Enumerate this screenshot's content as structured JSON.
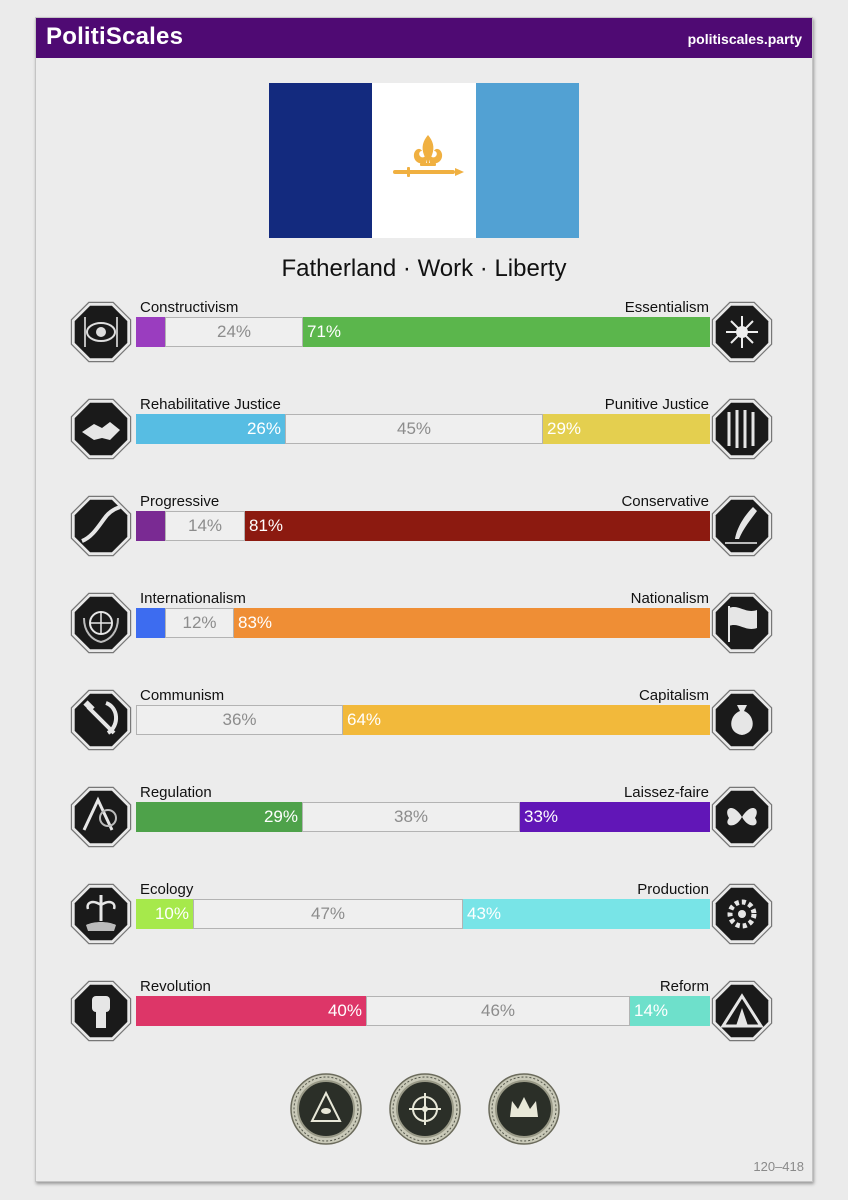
{
  "header": {
    "brand": "PolitiScales",
    "site": "politiscales.party"
  },
  "flag": {
    "colors": [
      "#132a7e",
      "#ffffff",
      "#52a1d3"
    ],
    "emblem": "fleur-de-lis-with-sword",
    "emblem_color": "#f0b041"
  },
  "slogan": "Fatherland · Work · Liberty",
  "axes": [
    {
      "left_label": "Constructivism",
      "right_label": "Essentialism",
      "left_icon": "eye-cage-icon",
      "right_icon": "flower-icon",
      "left": 5,
      "mid": 24,
      "right": 71,
      "left_text": "",
      "mid_text": "24%",
      "right_text": "71%",
      "left_color": "#9a3dbf",
      "right_color": "#5bb64c"
    },
    {
      "left_label": "Rehabilitative Justice",
      "right_label": "Punitive Justice",
      "left_icon": "handshake-icon",
      "right_icon": "prison-bars-icon",
      "left": 26,
      "mid": 45,
      "right": 29,
      "left_text": "26%",
      "mid_text": "45%",
      "right_text": "29%",
      "left_color": "#57bde3",
      "right_color": "#e4cf4f"
    },
    {
      "left_label": "Progressive",
      "right_label": "Conservative",
      "left_icon": "rising-path-icon",
      "right_icon": "quill-icon",
      "left": 5,
      "mid": 14,
      "right": 81,
      "left_text": "",
      "mid_text": "14%",
      "right_text": "81%",
      "left_color": "#7a2a93",
      "right_color": "#8c1a10"
    },
    {
      "left_label": "Internationalism",
      "right_label": "Nationalism",
      "left_icon": "globe-laurel-icon",
      "right_icon": "waving-flag-icon",
      "left": 5,
      "mid": 12,
      "right": 83,
      "left_text": "",
      "mid_text": "12%",
      "right_text": "83%",
      "left_color": "#3d6cf0",
      "right_color": "#ef8e35"
    },
    {
      "left_label": "Communism",
      "right_label": "Capitalism",
      "left_icon": "hammer-sickle-icon",
      "right_icon": "money-bag-icon",
      "left": 0,
      "mid": 36,
      "right": 64,
      "left_text": "",
      "mid_text": "36%",
      "right_text": "64%",
      "left_color": "#c0352b",
      "right_color": "#f2b93b"
    },
    {
      "left_label": "Regulation",
      "right_label": "Laissez-faire",
      "left_icon": "ruler-compass-icon",
      "right_icon": "butterflies-icon",
      "left": 29,
      "mid": 38,
      "right": 33,
      "left_text": "29%",
      "mid_text": "38%",
      "right_text": "33%",
      "left_color": "#4ea24a",
      "right_color": "#6116b7"
    },
    {
      "left_label": "Ecology",
      "right_label": "Production",
      "left_icon": "plant-roots-icon",
      "right_icon": "gears-icon",
      "left": 10,
      "mid": 47,
      "right": 43,
      "left_text": "10%",
      "mid_text": "47%",
      "right_text": "43%",
      "left_color": "#a6e94b",
      "right_color": "#78e4e7"
    },
    {
      "left_label": "Revolution",
      "right_label": "Reform",
      "left_icon": "raised-fist-icon",
      "right_icon": "tent-icon",
      "left": 40,
      "mid": 46,
      "right": 14,
      "left_text": "40%",
      "mid_text": "46%",
      "right_text": "14%",
      "left_color": "#dd3668",
      "right_color": "#6ee0cb"
    }
  ],
  "seals": [
    "pyramid-eye-seal-icon",
    "star-compass-seal-icon",
    "crown-seal-icon"
  ],
  "footer_code": "120–418"
}
